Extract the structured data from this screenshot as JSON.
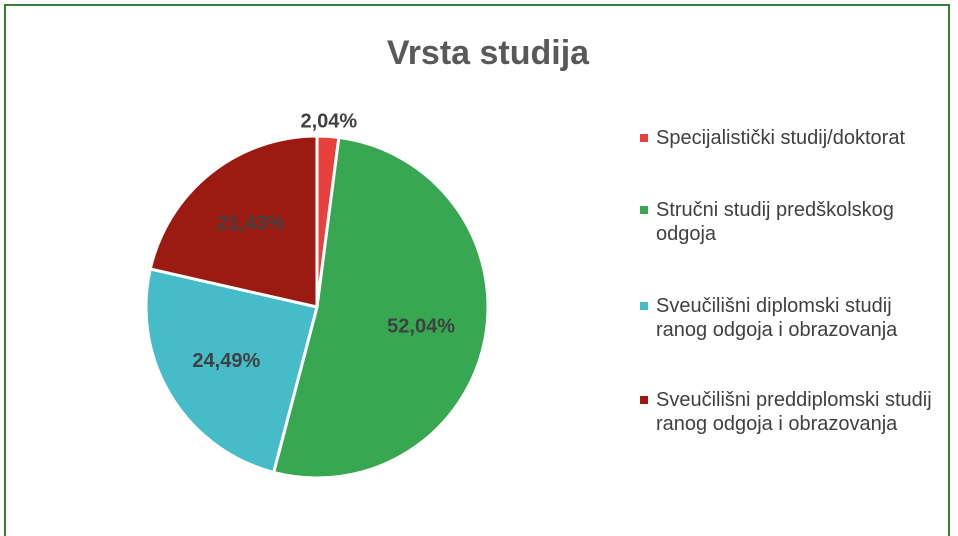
{
  "chart_data": {
    "type": "pie",
    "title": "Vrsta studija",
    "categories": [
      "Specijalistički studij/doktorat",
      "Stručni studij predškolskog odgoja",
      "Sveučilišni diplomski studij ranog odgoja i obrazovanja",
      "Sveučilišni preddiplomski studij ranog odgoja i obrazovanja"
    ],
    "values": [
      2.04,
      52.04,
      24.49,
      21.43
    ],
    "value_labels": [
      "2,04%",
      "52,04%",
      "24,49%",
      "21,43%"
    ],
    "colors": [
      "#e8413c",
      "#37a851",
      "#45bcc7",
      "#9b1b12"
    ],
    "legend": "right"
  }
}
